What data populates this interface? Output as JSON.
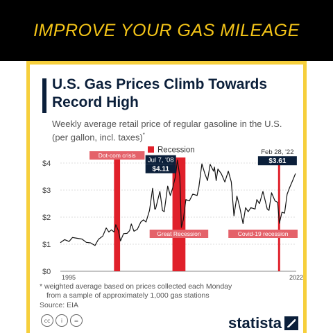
{
  "banner": {
    "text": "IMPROVE YOUR GAS MILEAGE"
  },
  "card": {
    "title": "U.S. Gas Prices Climb Towards Record High",
    "subtitle": "Weekly average retail price of regular gasoline in the U.S. (per gallon, incl. taxes)",
    "subtitle_marker": "*",
    "footnote_line1": "* weighted average based on prices collected each Monday",
    "footnote_line2": "from a sample of approximately 1,000 gas stations",
    "source": "Source: EIA",
    "license_icons": [
      "cc",
      "i",
      "="
    ],
    "brand": "statista"
  },
  "colors": {
    "banner_text": "#f5c518",
    "card_border": "#f6cf3c",
    "recession": "#e0202a",
    "recession_label_bg": "#e4626a",
    "line": "#111111",
    "callout_bg": "#0b1f3a",
    "title": "#0b1f3a"
  },
  "chart_data": {
    "type": "line",
    "legend": {
      "label": "Recession",
      "position": "top"
    },
    "x_labels": [
      "1995",
      "2022"
    ],
    "xlim": [
      1995.0,
      2022.25
    ],
    "yticks": [
      "$0",
      "$1",
      "$2",
      "$3",
      "$4"
    ],
    "ylim": [
      0,
      4
    ],
    "grid": true,
    "series": [
      {
        "points": [
          [
            1995.0,
            1.06
          ],
          [
            1995.5,
            1.17
          ],
          [
            1996.0,
            1.1
          ],
          [
            1996.4,
            1.25
          ],
          [
            1996.9,
            1.22
          ],
          [
            1997.5,
            1.19
          ],
          [
            1998.0,
            1.07
          ],
          [
            1998.5,
            1.05
          ],
          [
            1999.0,
            0.95
          ],
          [
            1999.4,
            1.18
          ],
          [
            1999.9,
            1.3
          ],
          [
            2000.3,
            1.6
          ],
          [
            2000.6,
            1.45
          ],
          [
            2000.9,
            1.53
          ],
          [
            2001.2,
            1.45
          ],
          [
            2001.4,
            1.72
          ],
          [
            2001.7,
            1.5
          ],
          [
            2001.95,
            1.12
          ],
          [
            2002.3,
            1.39
          ],
          [
            2002.7,
            1.4
          ],
          [
            2003.0,
            1.5
          ],
          [
            2003.2,
            1.75
          ],
          [
            2003.5,
            1.48
          ],
          [
            2003.9,
            1.55
          ],
          [
            2004.3,
            1.82
          ],
          [
            2004.6,
            1.9
          ],
          [
            2004.9,
            1.82
          ],
          [
            2005.3,
            2.25
          ],
          [
            2005.66,
            3.07
          ],
          [
            2005.9,
            2.3
          ],
          [
            2006.0,
            2.3
          ],
          [
            2006.5,
            2.95
          ],
          [
            2006.8,
            2.25
          ],
          [
            2007.0,
            2.2
          ],
          [
            2007.4,
            3.15
          ],
          [
            2007.7,
            2.8
          ],
          [
            2007.95,
            3.05
          ],
          [
            2008.3,
            3.5
          ],
          [
            2008.52,
            4.11
          ],
          [
            2008.8,
            3.5
          ],
          [
            2008.98,
            1.62
          ],
          [
            2009.2,
            1.9
          ],
          [
            2009.5,
            2.65
          ],
          [
            2009.9,
            2.6
          ],
          [
            2010.3,
            2.85
          ],
          [
            2010.8,
            2.8
          ],
          [
            2011.0,
            3.1
          ],
          [
            2011.35,
            3.97
          ],
          [
            2011.7,
            3.6
          ],
          [
            2012.0,
            3.35
          ],
          [
            2012.3,
            3.95
          ],
          [
            2012.7,
            3.7
          ],
          [
            2012.8,
            3.85
          ],
          [
            2013.0,
            3.35
          ],
          [
            2013.2,
            3.78
          ],
          [
            2013.6,
            3.6
          ],
          [
            2014.0,
            3.3
          ],
          [
            2014.4,
            3.7
          ],
          [
            2014.75,
            3.3
          ],
          [
            2015.05,
            2.05
          ],
          [
            2015.4,
            2.78
          ],
          [
            2015.7,
            2.4
          ],
          [
            2016.1,
            1.76
          ],
          [
            2016.4,
            2.35
          ],
          [
            2016.7,
            2.2
          ],
          [
            2017.0,
            2.35
          ],
          [
            2017.5,
            2.3
          ],
          [
            2017.7,
            2.65
          ],
          [
            2018.0,
            2.5
          ],
          [
            2018.4,
            2.95
          ],
          [
            2018.9,
            2.3
          ],
          [
            2019.1,
            2.25
          ],
          [
            2019.4,
            2.9
          ],
          [
            2019.8,
            2.6
          ],
          [
            2020.1,
            2.55
          ],
          [
            2020.3,
            1.77
          ],
          [
            2020.6,
            2.18
          ],
          [
            2020.9,
            2.15
          ],
          [
            2021.2,
            2.85
          ],
          [
            2021.5,
            3.1
          ],
          [
            2021.9,
            3.4
          ],
          [
            2022.16,
            3.61
          ]
        ]
      }
    ],
    "recessions": [
      {
        "start": 2001.2,
        "end": 2001.9,
        "label": "Dot-com crisis"
      },
      {
        "start": 2007.95,
        "end": 2009.45,
        "label": "Great Recession"
      },
      {
        "start": 2020.15,
        "end": 2020.35,
        "label": "Covid-19 recession"
      }
    ],
    "callouts": [
      {
        "x": 2008.52,
        "y": 4.11,
        "date": "Jul 7, '08",
        "value": "$4.11"
      },
      {
        "x": 2022.16,
        "y": 3.61,
        "date": "Feb 28, '22",
        "value": "$3.61"
      }
    ]
  }
}
